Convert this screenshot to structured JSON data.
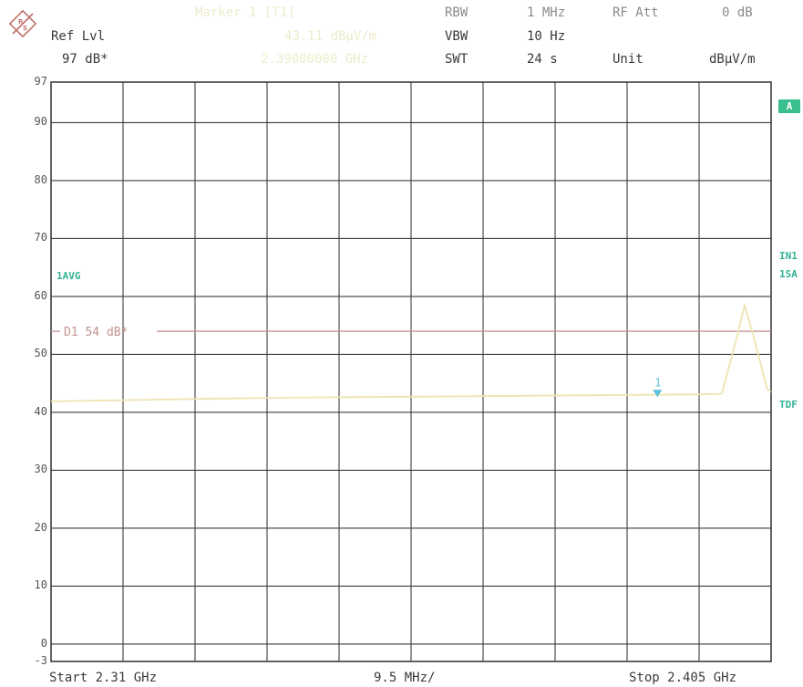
{
  "header": {
    "logo_text": "R&S",
    "ref_lvl_label": "Ref Lvl",
    "ref_lvl_value": "97 dB*",
    "marker_label": "Marker 1 [T1]",
    "marker_level": "43.11 dBµV/m",
    "marker_freq": "2.39000000 GHz",
    "rbw_label": "RBW",
    "rbw_value": "1 MHz",
    "vbw_label": "VBW",
    "vbw_value": "10 Hz",
    "swt_label": "SWT",
    "swt_value": "24 s",
    "rf_att_label": "RF Att",
    "rf_att_value": "0 dB",
    "unit_label": "Unit",
    "unit_value": "dBµV/m"
  },
  "side_labels": {
    "a": "A",
    "in1": "IN1",
    "sa": "1SA",
    "tdf": "TDF",
    "avg": "1AVG"
  },
  "colors": {
    "grid": "#3c3c3c",
    "trace": "#eee4b2",
    "limit_line": "#c49490",
    "marker": "#5cc0d8",
    "side_label": "#35b296",
    "a_box": "#3bbf8e"
  },
  "chart_data": {
    "type": "line",
    "xlabel": "",
    "ylabel": "",
    "ylim": [
      -3,
      97
    ],
    "xlim": [
      2.31,
      2.405
    ],
    "x_unit": "GHz",
    "y_ticks": [
      97,
      90,
      80,
      70,
      60,
      50,
      40,
      30,
      20,
      10,
      0,
      -3
    ],
    "y_tick_labels": [
      "97",
      "90",
      "80",
      "70",
      "60",
      "50",
      "40",
      "30",
      "20",
      "10",
      "0",
      "-3"
    ],
    "grid": true,
    "x_divisions": 10,
    "start_label": "Start 2.31 GHz",
    "span_label": "9.5 MHz/",
    "stop_label": "Stop 2.405 GHz",
    "display_line": {
      "label": "D1 54 dB*",
      "value": 54
    },
    "marker": {
      "label": "1",
      "x": 2.39,
      "y": 43.1
    },
    "series": [
      {
        "x": [
          2.31,
          2.3195,
          2.329,
          2.3385,
          2.348,
          2.3575,
          2.367,
          2.3765,
          2.386,
          2.3955,
          2.3985,
          2.4005,
          2.4015,
          2.4025,
          2.4045,
          2.405
        ],
        "values": [
          41.9,
          42.1,
          42.3,
          42.5,
          42.6,
          42.7,
          42.8,
          42.9,
          43.0,
          43.1,
          43.2,
          53.0,
          58.5,
          54.0,
          44.0,
          43.5
        ]
      }
    ]
  }
}
